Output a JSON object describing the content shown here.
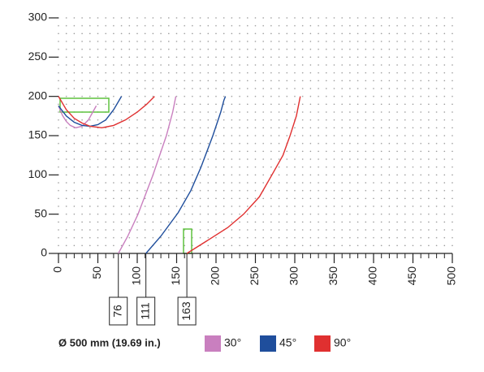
{
  "chart_data": {
    "type": "line",
    "xlim": [
      0,
      500
    ],
    "xticks": [
      0,
      50,
      100,
      150,
      200,
      250,
      300,
      350,
      400,
      450,
      500
    ],
    "ylim": [
      0,
      300
    ],
    "yticks": [
      0,
      50,
      100,
      150,
      200,
      250,
      300
    ],
    "grid": true,
    "markers": [
      76,
      111,
      163
    ],
    "legend_title": "Ø 500 mm (19.69 in.)",
    "series": [
      {
        "name": "30°",
        "color": "#c97fbf",
        "x": [
          0,
          5,
          10,
          15,
          22,
          30,
          38,
          48,
          null,
          76,
          88,
          101,
          120,
          137,
          145,
          149
        ],
        "values": [
          188,
          176,
          168,
          163,
          160,
          162,
          170,
          188,
          null,
          0,
          22,
          50,
          100,
          150,
          180,
          200
        ]
      },
      {
        "name": "45°",
        "color": "#1f4e9c",
        "x": [
          0,
          10,
          20,
          30,
          40,
          50,
          60,
          70,
          80,
          null,
          111,
          130,
          152,
          168,
          181,
          196,
          206,
          210,
          212
        ],
        "values": [
          188,
          175,
          167,
          163,
          162,
          164,
          170,
          183,
          200,
          null,
          0,
          22,
          52,
          80,
          110,
          150,
          180,
          195,
          200
        ]
      },
      {
        "name": "90°",
        "color": "#e03030",
        "x": [
          0,
          10,
          20,
          30,
          40,
          55,
          70,
          85,
          100,
          112,
          122,
          null,
          163,
          190,
          215,
          235,
          255,
          271,
          285,
          294,
          302,
          307
        ],
        "values": [
          200,
          183,
          172,
          166,
          162,
          160,
          163,
          170,
          180,
          190,
          200,
          null,
          0,
          17,
          33,
          50,
          72,
          100,
          125,
          150,
          175,
          200
        ]
      }
    ]
  }
}
